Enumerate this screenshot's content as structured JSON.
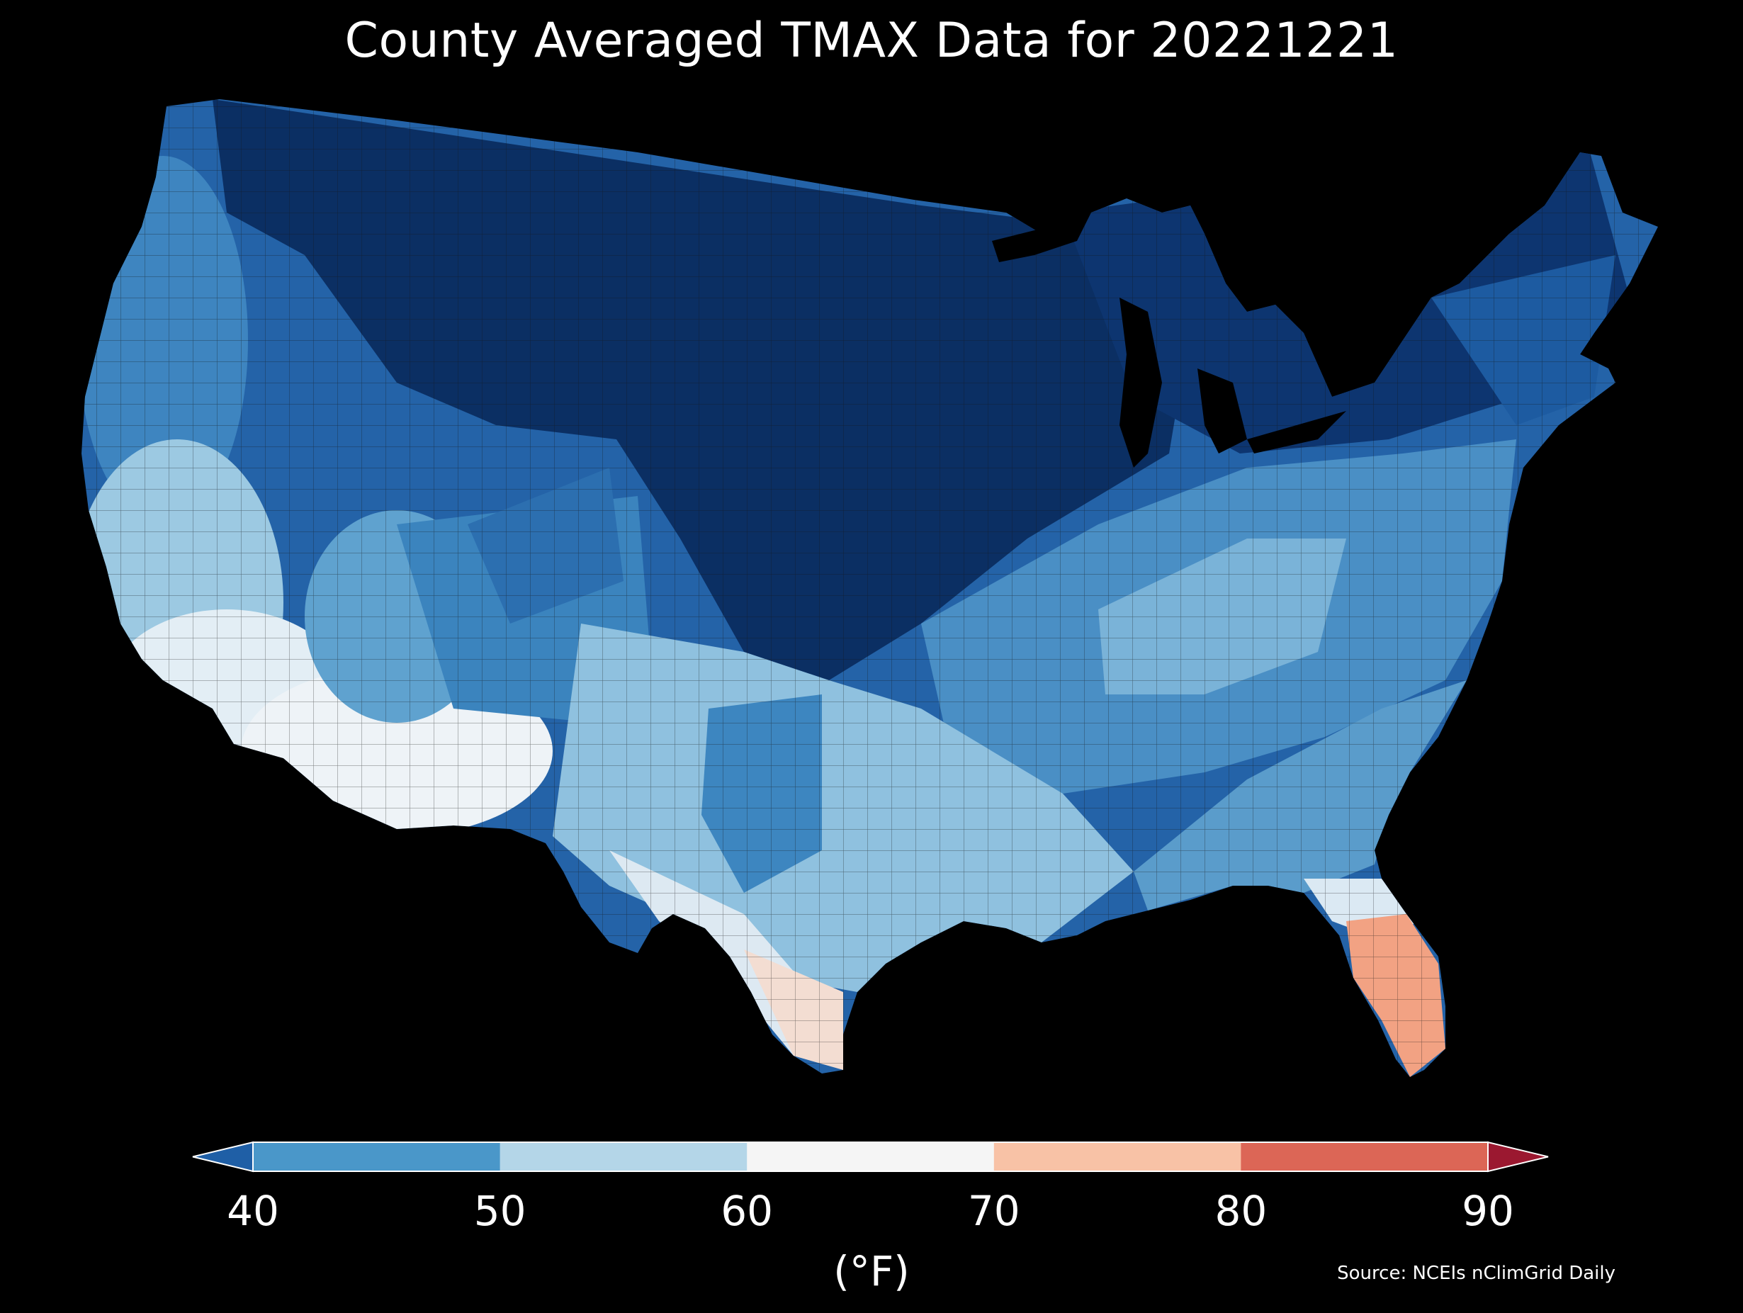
{
  "title": "County Averaged TMAX Data for 20221221",
  "unit_label": "(°F)",
  "source": "Source: NCEIs nClimGrid Daily",
  "colorbar": {
    "ticks": [
      "40",
      "50",
      "60",
      "70",
      "80",
      "90"
    ],
    "bins": [
      {
        "range": "<40",
        "color": "#1f5fa6"
      },
      {
        "range": "40-50",
        "color": "#4a97c9"
      },
      {
        "range": "50-60",
        "color": "#b4d6e8"
      },
      {
        "range": "60-70",
        "color": "#f5f5f5"
      },
      {
        "range": "70-80",
        "color": "#f8c2a6"
      },
      {
        "range": "80-90",
        "color": "#dc6656"
      },
      {
        "range": ">90",
        "color": "#9b1830"
      }
    ],
    "extend": "both"
  },
  "map_regions": [
    {
      "region": "north-central-plains",
      "value_band": "<40",
      "color": "#0b2f63"
    },
    {
      "region": "upper-midwest",
      "value_band": "<40",
      "color": "#0d3570"
    },
    {
      "region": "northeast",
      "value_band": "<40",
      "color": "#1a4f92"
    },
    {
      "region": "intermountain-west",
      "value_band": "<40",
      "color": "#2463a8"
    },
    {
      "region": "ohio-valley",
      "value_band": "40-50",
      "color": "#4a8fc5"
    },
    {
      "region": "southern-plains",
      "value_band": "50-60",
      "color": "#8fc1df"
    },
    {
      "region": "desert-southwest",
      "value_band": "60-70",
      "color": "#eef3f7"
    },
    {
      "region": "south-texas",
      "value_band": "60-70",
      "color": "#eef1f3"
    },
    {
      "region": "south-florida",
      "value_band": "70-80",
      "color": "#f2a283"
    }
  ],
  "colors": {
    "background": "#000000",
    "text": "#ffffff",
    "county_border": "#1a1a1a"
  }
}
